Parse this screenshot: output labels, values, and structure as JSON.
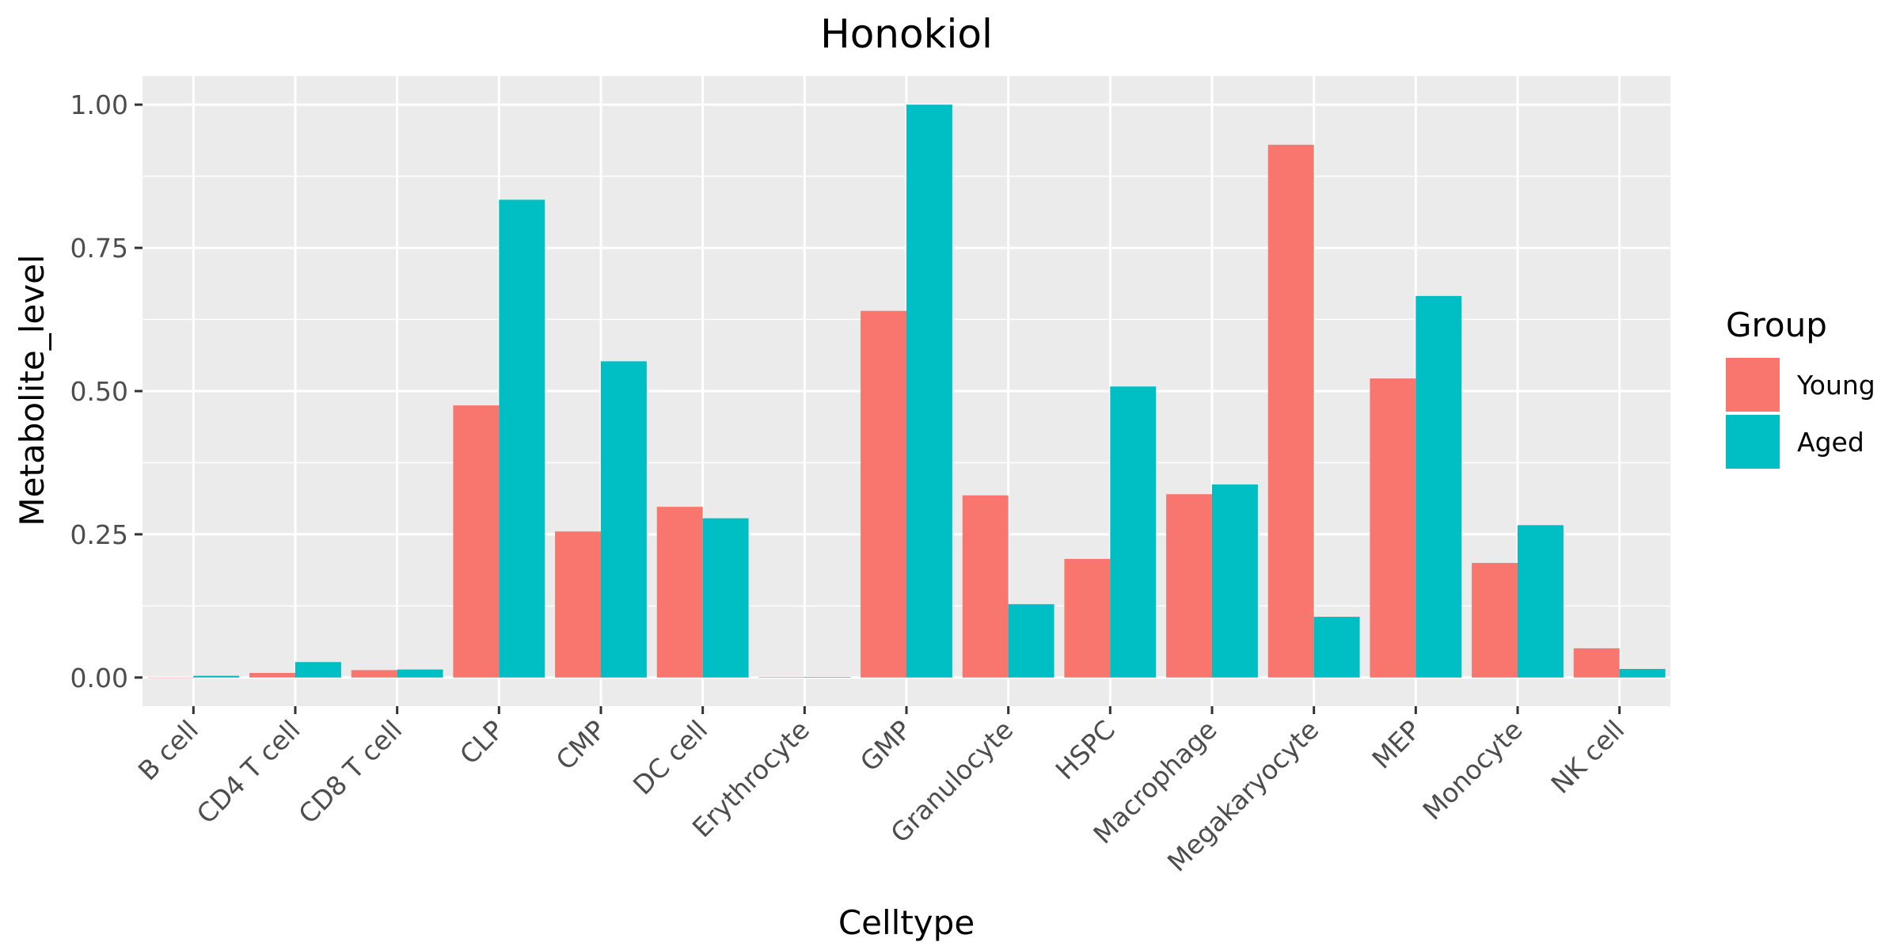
{
  "chart_data": {
    "type": "bar",
    "title": "Honokiol",
    "xlabel": "Celltype",
    "ylabel": "Metabolite_level",
    "categories": [
      "B cell",
      "CD4 T cell",
      "CD8 T cell",
      "CLP",
      "CMP",
      "DC cell",
      "Erythrocyte",
      "GMP",
      "Granulocyte",
      "HSPC",
      "Macrophage",
      "Megakaryocyte",
      "MEP",
      "Monocyte",
      "NK cell"
    ],
    "series": [
      {
        "name": "Young",
        "color": "#F8766D",
        "values": [
          0.0,
          0.008,
          0.013,
          0.475,
          0.255,
          0.298,
          0.001,
          0.64,
          0.318,
          0.207,
          0.32,
          0.93,
          0.522,
          0.2,
          0.051
        ]
      },
      {
        "name": "Aged",
        "color": "#00BFC4",
        "values": [
          0.003,
          0.027,
          0.014,
          0.834,
          0.552,
          0.278,
          0.001,
          1.0,
          0.128,
          0.508,
          0.337,
          0.106,
          0.666,
          0.266,
          0.015
        ]
      }
    ],
    "ylim": [
      -0.05,
      1.05
    ],
    "yticks": [
      0.0,
      0.25,
      0.5,
      0.75,
      1.0
    ],
    "ytick_labels": [
      "0.00",
      "0.25",
      "0.50",
      "0.75",
      "1.00"
    ],
    "legend": {
      "title": "Group",
      "position": "right"
    },
    "grid": true,
    "panel_background": "#EBEBEB"
  }
}
